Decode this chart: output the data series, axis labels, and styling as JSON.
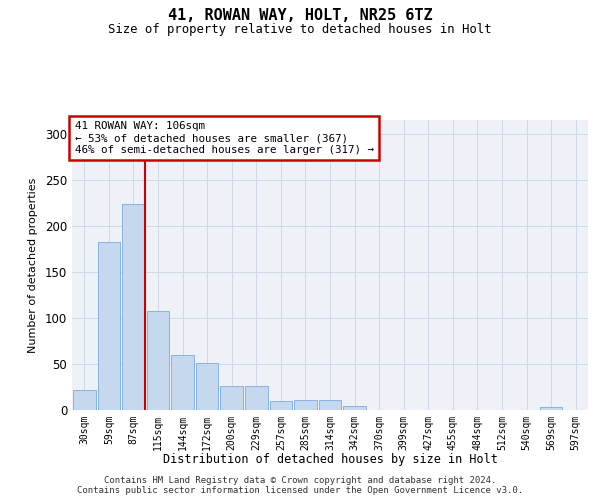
{
  "title1": "41, ROWAN WAY, HOLT, NR25 6TZ",
  "title2": "Size of property relative to detached houses in Holt",
  "xlabel": "Distribution of detached houses by size in Holt",
  "ylabel": "Number of detached properties",
  "categories": [
    "30sqm",
    "59sqm",
    "87sqm",
    "115sqm",
    "144sqm",
    "172sqm",
    "200sqm",
    "229sqm",
    "257sqm",
    "285sqm",
    "314sqm",
    "342sqm",
    "370sqm",
    "399sqm",
    "427sqm",
    "455sqm",
    "484sqm",
    "512sqm",
    "540sqm",
    "569sqm",
    "597sqm"
  ],
  "values": [
    22,
    183,
    224,
    107,
    60,
    51,
    26,
    26,
    10,
    11,
    11,
    4,
    0,
    0,
    0,
    0,
    0,
    0,
    0,
    3,
    0
  ],
  "bar_color": "#c5d8ee",
  "bar_edge_color": "#7aabe0",
  "vline_after_index": 1,
  "annotation_text": "41 ROWAN WAY: 106sqm\n← 53% of detached houses are smaller (367)\n46% of semi-detached houses are larger (317) →",
  "annotation_box_color": "#ffffff",
  "annotation_box_edge": "#cc0000",
  "vline_color": "#cc0000",
  "grid_color": "#d0d8e8",
  "bg_color": "#eef2f8",
  "ylim": [
    0,
    315
  ],
  "yticks": [
    0,
    50,
    100,
    150,
    200,
    250,
    300
  ],
  "footnote1": "Contains HM Land Registry data © Crown copyright and database right 2024.",
  "footnote2": "Contains public sector information licensed under the Open Government Licence v3.0."
}
